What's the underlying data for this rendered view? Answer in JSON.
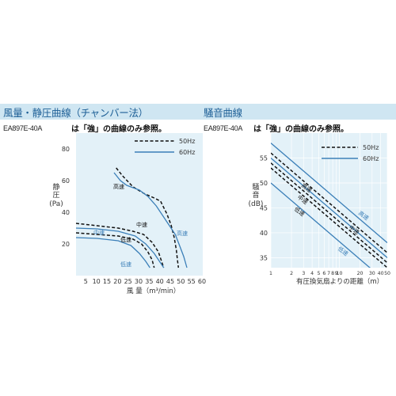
{
  "headers": {
    "left_title": "風量・静圧曲線（チャンバー法）",
    "right_title": "騒音曲線"
  },
  "left": {
    "model": "EA897E-40A",
    "note": "は「強」の曲線のみ参照。"
  },
  "right": {
    "model": "EA897E-40A",
    "note": "は「強」の曲線のみ参照。"
  },
  "colors": {
    "blue": "#3b7fb8",
    "dash": "#111111",
    "panel": "#e3f1f8",
    "header": "#cfe6f2"
  },
  "chart_data": [
    {
      "type": "line",
      "title": "",
      "xlabel": "風 量（m³/min）",
      "ylabel": "静\n圧\n(Pa)",
      "xlim": [
        0,
        60
      ],
      "ylim": [
        0,
        90
      ],
      "x_ticks": [
        "5",
        "10",
        "15",
        "20",
        "25",
        "30",
        "35",
        "40",
        "45",
        "50",
        "55",
        "60"
      ],
      "y_ticks": [
        "20",
        "40",
        "60",
        "80"
      ],
      "legend": [
        {
          "label": "50Hz",
          "style": "dashed"
        },
        {
          "label": "60Hz",
          "style": "solid"
        }
      ],
      "series": [
        {
          "name": "",
          "style": "dashed",
          "label": "高速",
          "points": [
            [
              19,
              68
            ],
            [
              22,
              63
            ],
            [
              27,
              56
            ],
            [
              32,
              52
            ],
            [
              37,
              49
            ],
            [
              40,
              47
            ],
            [
              43,
              39
            ],
            [
              45,
              32
            ],
            [
              46.5,
              24
            ],
            [
              47.5,
              16
            ],
            [
              48,
              10
            ],
            [
              48.5,
              5
            ]
          ]
        },
        {
          "name": "",
          "style": "dashed",
          "label": "中速",
          "points": [
            [
              0,
              33
            ],
            [
              10,
              31.5
            ],
            [
              20,
              30
            ],
            [
              27,
              28
            ],
            [
              32,
              26
            ],
            [
              36,
              21
            ],
            [
              39,
              15
            ],
            [
              40.5,
              9
            ],
            [
              41.5,
              5
            ]
          ]
        },
        {
          "name": "",
          "style": "dashed",
          "label": "低速",
          "points": [
            [
              0,
              27
            ],
            [
              10,
              26
            ],
            [
              20,
              25
            ],
            [
              27,
              23
            ],
            [
              31,
              20
            ],
            [
              34,
              15
            ],
            [
              36,
              10
            ],
            [
              37,
              5
            ]
          ]
        },
        {
          "name": "",
          "style": "solid",
          "label": "高速",
          "points": [
            [
              18,
              65
            ],
            [
              21,
              60
            ],
            [
              24,
              57
            ],
            [
              30,
              54
            ],
            [
              34,
              50
            ],
            [
              38,
              44
            ],
            [
              41,
              38
            ],
            [
              44,
              32
            ],
            [
              47,
              26
            ],
            [
              49,
              19
            ],
            [
              51,
              12
            ],
            [
              52.5,
              5
            ]
          ]
        },
        {
          "name": "",
          "style": "solid",
          "label": "中速",
          "points": [
            [
              0,
              30
            ],
            [
              10,
              29.5
            ],
            [
              20,
              28
            ],
            [
              28,
              25
            ],
            [
              33,
              20
            ],
            [
              37,
              14
            ],
            [
              40,
              8
            ],
            [
              41.5,
              5
            ]
          ]
        },
        {
          "name": "",
          "style": "solid",
          "label": "低速",
          "points": [
            [
              0,
              24
            ],
            [
              10,
              23.5
            ],
            [
              20,
              22
            ],
            [
              26,
              19
            ],
            [
              30,
              14
            ],
            [
              33,
              9
            ],
            [
              35,
              5
            ]
          ]
        }
      ]
    },
    {
      "type": "line",
      "title": "",
      "xlabel": "有圧換気扇よりの距離（m）",
      "ylabel": "騒\n音\n(dB)",
      "x_scale": "log",
      "xlim": [
        1,
        50
      ],
      "ylim": [
        33,
        60
      ],
      "x_ticks": [
        "1",
        "2",
        "3",
        "4",
        "5",
        "6",
        "7",
        "8",
        "9",
        "10",
        "20",
        "30",
        "40",
        "50"
      ],
      "y_ticks": [
        "35",
        "40",
        "45",
        "50",
        "55"
      ],
      "legend": [
        {
          "label": "50Hz",
          "style": "dashed"
        },
        {
          "label": "60Hz",
          "style": "solid"
        }
      ],
      "series": [
        {
          "name": "",
          "style": "solid",
          "label": "高速",
          "points": [
            [
              1,
              58
            ],
            [
              50,
              38
            ]
          ]
        },
        {
          "name": "",
          "style": "dashed",
          "label": "高速",
          "points": [
            [
              1,
              56
            ],
            [
              50,
              36
            ]
          ]
        },
        {
          "name": "",
          "style": "solid",
          "label": "中速",
          "points": [
            [
              1,
              55
            ],
            [
              50,
              35
            ]
          ]
        },
        {
          "name": "",
          "style": "dashed",
          "label": "中速",
          "points": [
            [
              1,
              54
            ],
            [
              50,
              34
            ]
          ]
        },
        {
          "name": "",
          "style": "dashed",
          "label": "低速",
          "points": [
            [
              1,
              53
            ],
            [
              50,
              33
            ]
          ]
        },
        {
          "name": "",
          "style": "solid",
          "label": "低速",
          "points": [
            [
              1,
              50
            ],
            [
              50,
              30
            ]
          ]
        }
      ]
    }
  ]
}
